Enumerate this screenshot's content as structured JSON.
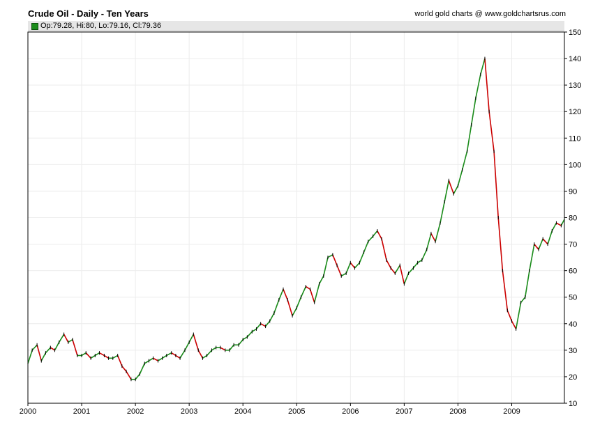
{
  "header": {
    "title": "Crude Oil - Daily - Ten Years",
    "credit": "world gold charts @ www.goldchartsrus.com"
  },
  "legend": {
    "text": "Op:79.28, Hi:80, Lo:79.16, Cl:79.36",
    "swatch_color": "#1a8c1a"
  },
  "chart_data": {
    "type": "line",
    "xlabel": "",
    "ylabel": "",
    "xlim": [
      2000.0,
      2009.98
    ],
    "ylim": [
      10,
      150
    ],
    "y_axis_side": "right",
    "grid": true,
    "x_ticks": [
      "2000",
      "2001",
      "2002",
      "2003",
      "2004",
      "2005",
      "2006",
      "2007",
      "2008",
      "2009"
    ],
    "y_ticks": [
      10,
      20,
      30,
      40,
      50,
      60,
      70,
      80,
      90,
      100,
      110,
      120,
      130,
      140,
      150
    ],
    "up_color": "#1a8c1a",
    "down_color": "#cc0000",
    "series": [
      {
        "x": [
          2000.0,
          2000.08,
          2000.17,
          2000.25,
          2000.33,
          2000.42,
          2000.5,
          2000.58,
          2000.67,
          2000.75,
          2000.83,
          2000.92,
          2001.0,
          2001.08,
          2001.17,
          2001.25,
          2001.33,
          2001.42,
          2001.5,
          2001.58,
          2001.67,
          2001.75,
          2001.83,
          2001.92,
          2002.0,
          2002.08,
          2002.17,
          2002.25,
          2002.33,
          2002.42,
          2002.5,
          2002.58,
          2002.67,
          2002.75,
          2002.83,
          2002.92,
          2003.0,
          2003.08,
          2003.17,
          2003.25,
          2003.33,
          2003.42,
          2003.5,
          2003.58,
          2003.67,
          2003.75,
          2003.83,
          2003.92,
          2004.0,
          2004.08,
          2004.17,
          2004.25,
          2004.33,
          2004.42,
          2004.5,
          2004.58,
          2004.67,
          2004.75,
          2004.83,
          2004.92,
          2005.0,
          2005.08,
          2005.17,
          2005.25,
          2005.33,
          2005.42,
          2005.5,
          2005.58,
          2005.67,
          2005.75,
          2005.83,
          2005.92,
          2006.0,
          2006.08,
          2006.17,
          2006.25,
          2006.33,
          2006.42,
          2006.5,
          2006.58,
          2006.67,
          2006.75,
          2006.83,
          2006.92,
          2007.0,
          2007.08,
          2007.17,
          2007.25,
          2007.33,
          2007.42,
          2007.5,
          2007.58,
          2007.67,
          2007.75,
          2007.83,
          2007.92,
          2008.0,
          2008.08,
          2008.17,
          2008.25,
          2008.33,
          2008.42,
          2008.5,
          2008.58,
          2008.67,
          2008.75,
          2008.83,
          2008.92,
          2009.0,
          2009.08,
          2009.17,
          2009.25,
          2009.33,
          2009.42,
          2009.5,
          2009.58,
          2009.67,
          2009.75,
          2009.83,
          2009.92,
          2009.98
        ],
        "y": [
          25,
          30,
          32,
          26,
          29,
          31,
          30,
          33,
          36,
          33,
          34,
          28,
          28,
          29,
          27,
          28,
          29,
          28,
          27,
          27,
          28,
          24,
          22,
          19,
          19,
          21,
          25,
          26,
          27,
          26,
          27,
          28,
          29,
          28,
          27,
          30,
          33,
          36,
          30,
          27,
          28,
          30,
          31,
          31,
          30,
          30,
          32,
          32,
          34,
          35,
          37,
          38,
          40,
          39,
          41,
          44,
          49,
          53,
          49,
          43,
          46,
          50,
          54,
          53,
          48,
          55,
          58,
          65,
          66,
          62,
          58,
          59,
          63,
          61,
          63,
          67,
          71,
          73,
          75,
          72,
          64,
          61,
          59,
          62,
          55,
          59,
          61,
          63,
          64,
          68,
          74,
          71,
          78,
          86,
          94,
          89,
          92,
          98,
          105,
          115,
          125,
          134,
          140,
          120,
          105,
          80,
          60,
          45,
          41,
          38,
          48,
          50,
          60,
          70,
          68,
          72,
          70,
          75,
          78,
          77,
          79.36
        ]
      }
    ]
  }
}
